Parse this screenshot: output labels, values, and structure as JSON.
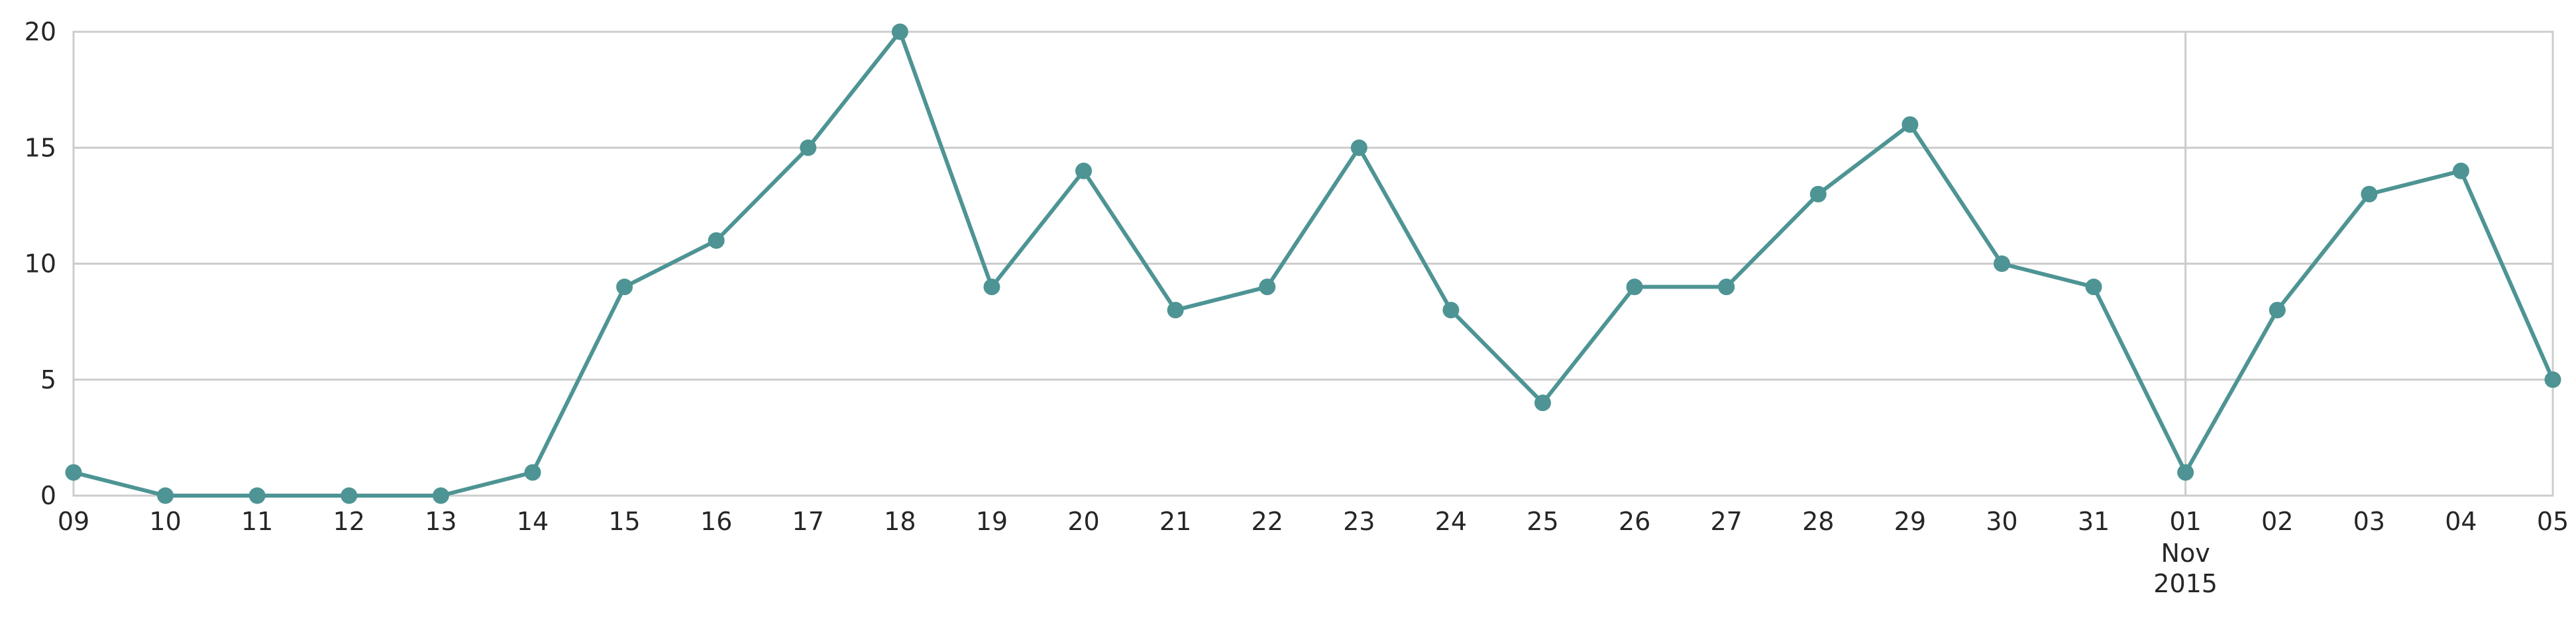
{
  "chart_data": {
    "type": "line",
    "title": "",
    "xlabel": "",
    "ylabel": "",
    "x": [
      "2015-10-09",
      "2015-10-10",
      "2015-10-11",
      "2015-10-12",
      "2015-10-13",
      "2015-10-14",
      "2015-10-15",
      "2015-10-16",
      "2015-10-17",
      "2015-10-18",
      "2015-10-19",
      "2015-10-20",
      "2015-10-21",
      "2015-10-22",
      "2015-10-23",
      "2015-10-24",
      "2015-10-25",
      "2015-10-26",
      "2015-10-27",
      "2015-10-28",
      "2015-10-29",
      "2015-10-30",
      "2015-10-31",
      "2015-11-01",
      "2015-11-02",
      "2015-11-03",
      "2015-11-04",
      "2015-11-05"
    ],
    "series": [
      {
        "values": [
          1,
          0,
          0,
          0,
          0,
          1,
          9,
          11,
          15,
          20,
          9,
          14,
          8,
          9,
          15,
          8,
          4,
          9,
          9,
          13,
          16,
          10,
          9,
          1,
          8,
          13,
          14,
          5
        ],
        "color": "#4e9494",
        "marker": "circle"
      }
    ],
    "x_tick_labels": [
      "09",
      "10",
      "11",
      "12",
      "13",
      "14",
      "15",
      "16",
      "17",
      "18",
      "19",
      "20",
      "21",
      "22",
      "23",
      "24",
      "25",
      "26",
      "27",
      "28",
      "29",
      "30",
      "31",
      "01",
      "02",
      "03",
      "04",
      "05"
    ],
    "x_major_labels": [
      {
        "tick": "01",
        "month": "Nov",
        "year": "2015"
      }
    ],
    "y_ticks": [
      0,
      5,
      10,
      15,
      20
    ],
    "y_tick_labels": [
      "0",
      "5",
      "10",
      "15",
      "20"
    ],
    "ylim": [
      0,
      20
    ],
    "xlim": [
      "2015-10-09",
      "2015-11-05"
    ],
    "grid": "horizontal",
    "major_vertical_gridline": "2015-11-01",
    "legend": "none",
    "colors": {
      "line": "#4e9494",
      "grid": "#cccccc",
      "axes": "#cccccc",
      "text": "#262626"
    }
  }
}
